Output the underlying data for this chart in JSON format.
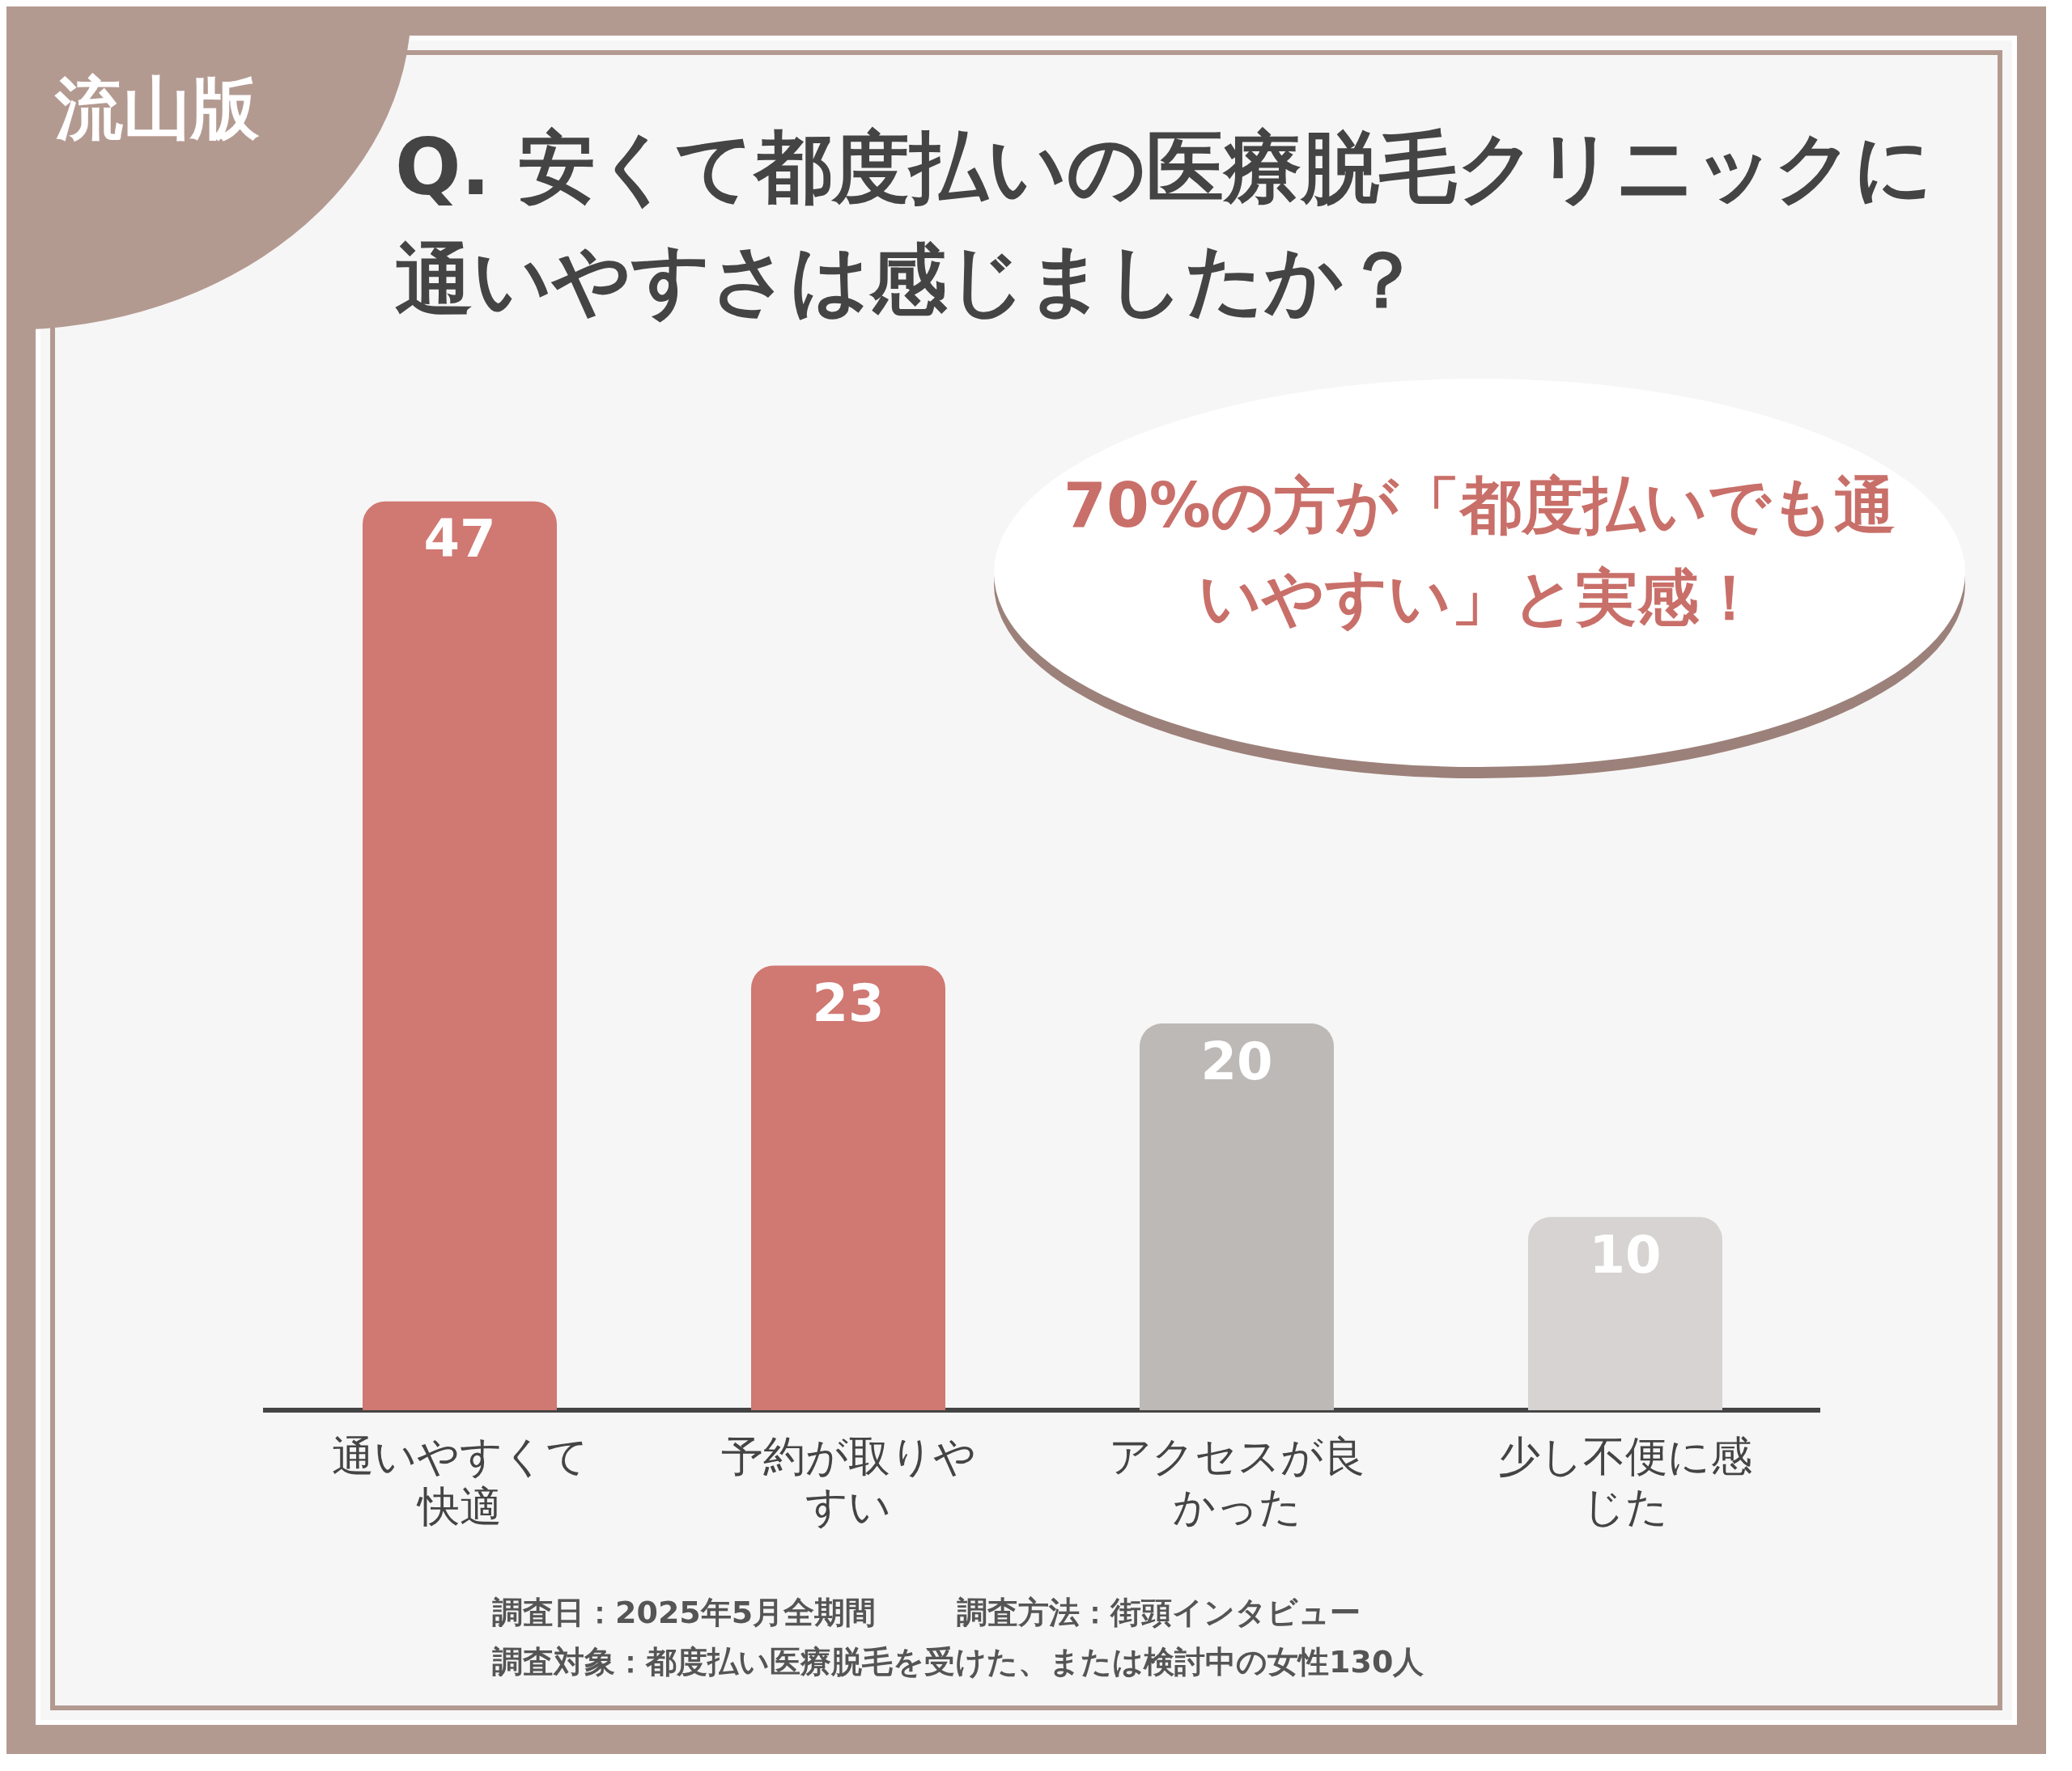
{
  "chart_data": {
    "type": "bar",
    "title": "Q. 安くて都度払いの医療脱毛クリニックに通いやすさは感じましたか？",
    "categories": [
      "通いやすくて快適",
      "予約が取りやすい",
      "アクセスが良かった",
      "少し不便に感じた"
    ],
    "values": [
      47,
      23,
      20,
      10
    ],
    "colors": [
      "#d07872",
      "#d07872",
      "#bdb9b7",
      "#d6d3d2"
    ],
    "data_labels": true,
    "grid": false,
    "legend": false,
    "annotations": [
      "流山版",
      "70%の方が「都度払いでも通いやすい」と実感！",
      "調査日：2025年5月全期間",
      "調査方法：街頭インタビュー",
      "調査対象：都度払い医療脱毛を受けた、または検討中の女性130人"
    ]
  }
}
